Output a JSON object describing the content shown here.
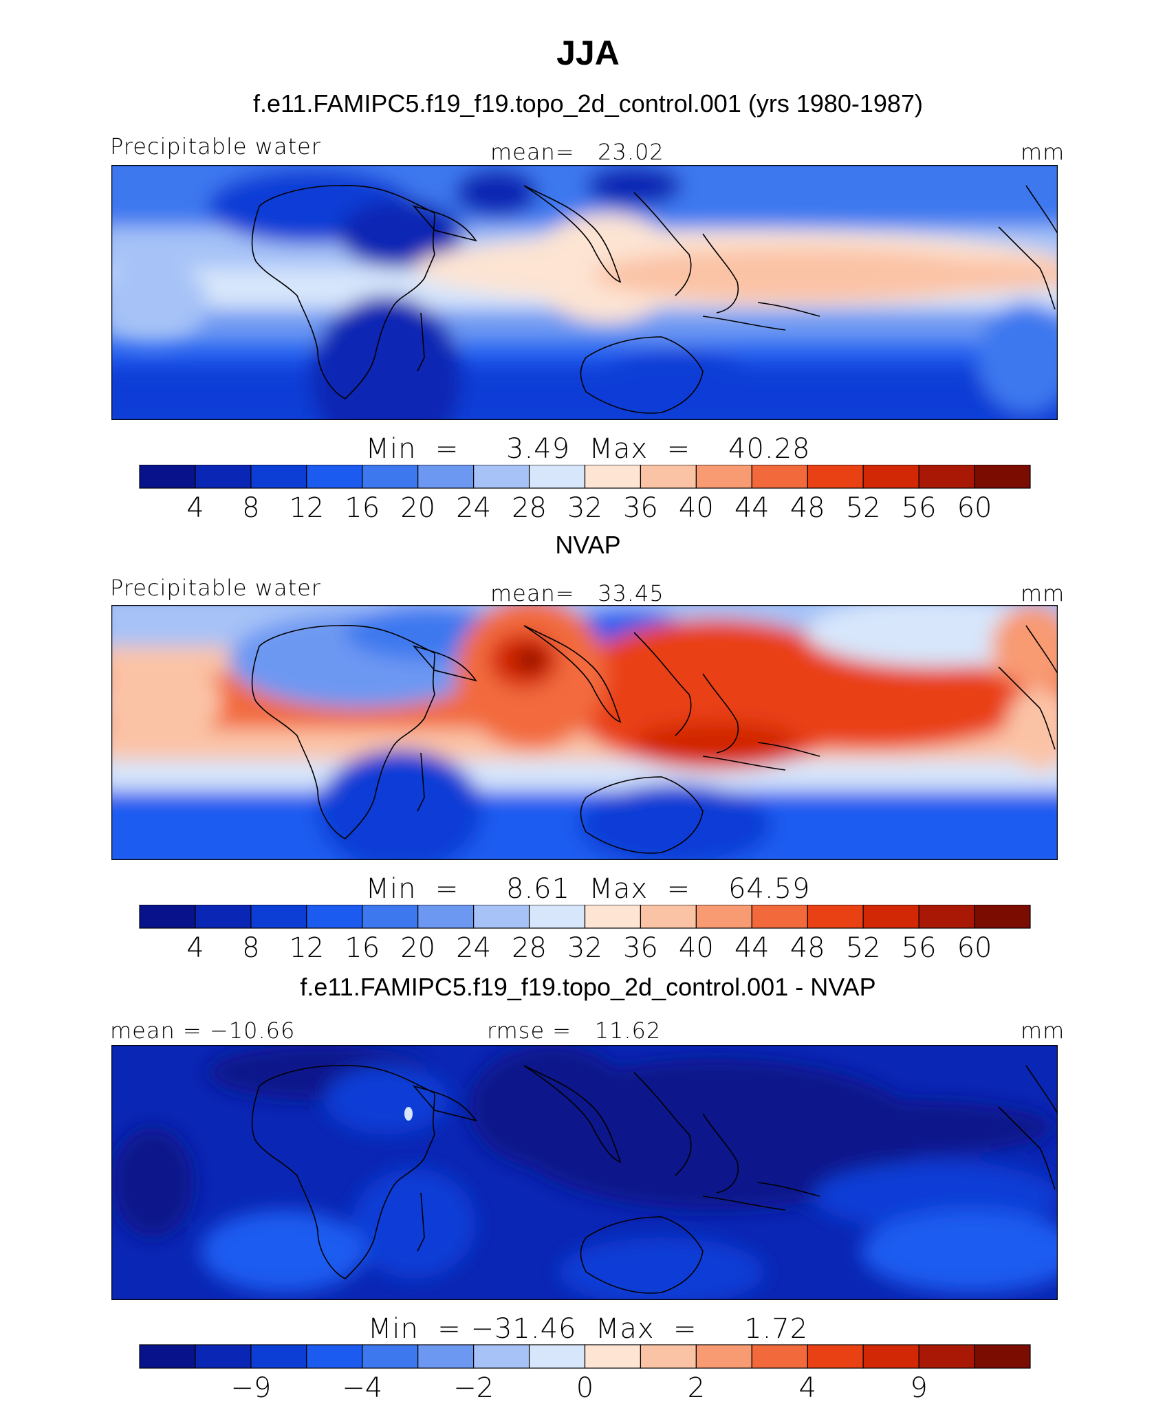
{
  "title": "JJA",
  "panels": [
    {
      "title": "f.e11.FAMIPC5.f19_f19.topo_2d_control.001 (yrs 1980-1987)",
      "left_label": "Precipitable water",
      "center_label": "mean=   23.02",
      "units": "mm",
      "min_max": "Min  =     3.49  Max  =    40.28"
    },
    {
      "title": "NVAP",
      "left_label": "Precipitable water",
      "center_label": "mean=   33.45",
      "units": "mm",
      "min_max": "Min  =     8.61  Max  =    64.59"
    },
    {
      "title": "f.e11.FAMIPC5.f19_f19.topo_2d_control.001 - NVAP",
      "left_label": "mean = −10.66",
      "center_label": "rmse =   11.62",
      "units": "mm",
      "min_max": "Min  = −31.46  Max  =     1.72"
    }
  ],
  "colorbar": {
    "colors": [
      "#08128a",
      "#0a26b4",
      "#0c3ed6",
      "#1c5bf0",
      "#3e78ef",
      "#6d98f2",
      "#a6c2f7",
      "#d7e6fb",
      "#fde4d3",
      "#fbc3a6",
      "#f89a72",
      "#f26a3c",
      "#e94114",
      "#d22806",
      "#a81804",
      "#7a0c02"
    ],
    "abs_ticks": [
      "4",
      "8",
      "12",
      "16",
      "20",
      "24",
      "28",
      "32",
      "36",
      "40",
      "44",
      "48",
      "52",
      "56",
      "60"
    ],
    "diff_ticks": [
      {
        "label": "−9",
        "pos": 2
      },
      {
        "label": "−4",
        "pos": 4
      },
      {
        "label": "−2",
        "pos": 6
      },
      {
        "label": "0",
        "pos": 8
      },
      {
        "label": "2",
        "pos": 10
      },
      {
        "label": "4",
        "pos": 12
      },
      {
        "label": "9",
        "pos": 14
      }
    ]
  },
  "chart_data": [
    {
      "type": "heatmap",
      "title": "f.e11.FAMIPC5.f19_f19.topo_2d_control.001 (yrs 1980-1987)",
      "variable": "Precipitable water",
      "units": "mm",
      "mean": 23.02,
      "min": 3.49,
      "max": 40.28,
      "levels": [
        4,
        8,
        12,
        16,
        20,
        24,
        28,
        32,
        36,
        40,
        44,
        48,
        52,
        56,
        60
      ],
      "pattern": "highest (32-40 mm) over Indian Ocean, South/Southeast Asia and tropical Pacific; low over Sahara, Arabia, southern Africa and Southern Hemisphere subtropics"
    },
    {
      "type": "heatmap",
      "title": "NVAP",
      "variable": "Precipitable water",
      "units": "mm",
      "mean": 33.45,
      "min": 8.61,
      "max": 64.59,
      "levels": [
        4,
        8,
        12,
        16,
        20,
        24,
        28,
        32,
        36,
        40,
        44,
        48,
        52,
        56,
        60
      ],
      "pattern": "maximum (>56 mm) over Bay of Bengal / India; 48-56 mm across the warm pool and Pacific ITCZ; low over Sahara and Southern Hemisphere subtropics"
    },
    {
      "type": "heatmap",
      "title": "f.e11.FAMIPC5.f19_f19.topo_2d_control.001 - NVAP",
      "units": "mm",
      "mean": -10.66,
      "rmse": 11.62,
      "min": -31.46,
      "max": 1.72,
      "tick_labels": [
        -9,
        -4,
        -2,
        0,
        2,
        4,
        9
      ],
      "pattern": "negative nearly everywhere, largest deficits over Indian Ocean, Asian monsoon and western Pacific"
    }
  ]
}
